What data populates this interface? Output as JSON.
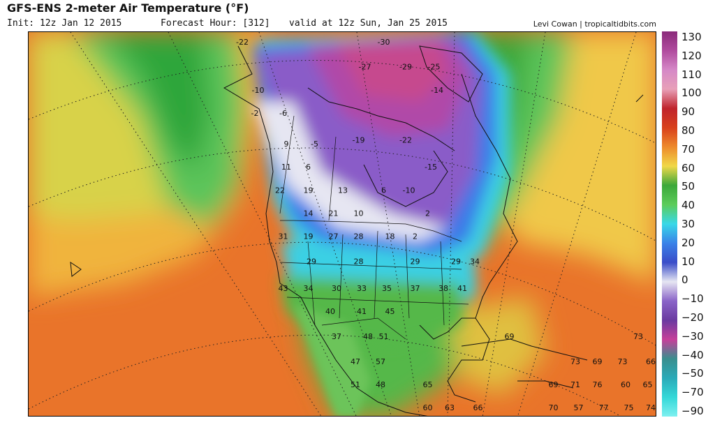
{
  "header": {
    "title": "GFS-ENS 2-meter Air Temperature (°F)",
    "init": "Init: 12z Jan 12 2015",
    "forecast_hour": "Forecast Hour: [312]",
    "valid": "valid at 12z Sun, Jan 25 2015",
    "credit": "Levi Cowan | tropicaltidbits.com"
  },
  "colorbar": {
    "ticks": [
      "130",
      "120",
      "110",
      "100",
      "90",
      "80",
      "70",
      "60",
      "50",
      "40",
      "30",
      "20",
      "10",
      "0",
      "−10",
      "−20",
      "−30",
      "−40",
      "−50",
      "−70",
      "−90"
    ],
    "colors": [
      "#8a2a7a",
      "#b04b9e",
      "#d588c7",
      "#e8a0b8",
      "#c0242c",
      "#d8401c",
      "#ee8a2c",
      "#f0d848",
      "#3ca83a",
      "#5ccc5a",
      "#38d8e8",
      "#3a82e8",
      "#3a4cc8",
      "#e6e6f2",
      "#8a64c8",
      "#6a3aa0",
      "#c6409a",
      "#3a8e8e",
      "#2aaab8",
      "#34d8d8",
      "#7ef0f0"
    ]
  },
  "map": {
    "values": [
      {
        "v": "-22",
        "x": 0.34,
        "y": 0.025
      },
      {
        "v": "-30",
        "x": 0.565,
        "y": 0.025
      },
      {
        "v": "-27",
        "x": 0.535,
        "y": 0.09
      },
      {
        "v": "-29",
        "x": 0.6,
        "y": 0.09
      },
      {
        "v": "-25",
        "x": 0.645,
        "y": 0.09
      },
      {
        "v": "-14",
        "x": 0.65,
        "y": 0.15
      },
      {
        "v": "-10",
        "x": 0.365,
        "y": 0.15
      },
      {
        "v": "-2",
        "x": 0.36,
        "y": 0.21
      },
      {
        "v": "-6",
        "x": 0.405,
        "y": 0.21
      },
      {
        "v": "-19",
        "x": 0.525,
        "y": 0.28
      },
      {
        "v": "-22",
        "x": 0.6,
        "y": 0.28
      },
      {
        "v": "9",
        "x": 0.41,
        "y": 0.29
      },
      {
        "v": "-5",
        "x": 0.455,
        "y": 0.29
      },
      {
        "v": "11",
        "x": 0.41,
        "y": 0.35
      },
      {
        "v": "6",
        "x": 0.445,
        "y": 0.35
      },
      {
        "v": "-15",
        "x": 0.64,
        "y": 0.35
      },
      {
        "v": "22",
        "x": 0.4,
        "y": 0.41
      },
      {
        "v": "19",
        "x": 0.445,
        "y": 0.41
      },
      {
        "v": "13",
        "x": 0.5,
        "y": 0.41
      },
      {
        "v": "6",
        "x": 0.565,
        "y": 0.41
      },
      {
        "v": "-10",
        "x": 0.605,
        "y": 0.41
      },
      {
        "v": "14",
        "x": 0.445,
        "y": 0.47
      },
      {
        "v": "21",
        "x": 0.485,
        "y": 0.47
      },
      {
        "v": "10",
        "x": 0.525,
        "y": 0.47
      },
      {
        "v": "2",
        "x": 0.635,
        "y": 0.47
      },
      {
        "v": "31",
        "x": 0.405,
        "y": 0.53
      },
      {
        "v": "19",
        "x": 0.445,
        "y": 0.53
      },
      {
        "v": "27",
        "x": 0.485,
        "y": 0.53
      },
      {
        "v": "28",
        "x": 0.525,
        "y": 0.53
      },
      {
        "v": "18",
        "x": 0.575,
        "y": 0.53
      },
      {
        "v": "2",
        "x": 0.615,
        "y": 0.53
      },
      {
        "v": "29",
        "x": 0.45,
        "y": 0.595
      },
      {
        "v": "28",
        "x": 0.525,
        "y": 0.595
      },
      {
        "v": "29",
        "x": 0.615,
        "y": 0.595
      },
      {
        "v": "29",
        "x": 0.68,
        "y": 0.595
      },
      {
        "v": "34",
        "x": 0.71,
        "y": 0.595
      },
      {
        "v": "43",
        "x": 0.405,
        "y": 0.665
      },
      {
        "v": "34",
        "x": 0.445,
        "y": 0.665
      },
      {
        "v": "30",
        "x": 0.49,
        "y": 0.665
      },
      {
        "v": "33",
        "x": 0.53,
        "y": 0.665
      },
      {
        "v": "35",
        "x": 0.57,
        "y": 0.665
      },
      {
        "v": "37",
        "x": 0.615,
        "y": 0.665
      },
      {
        "v": "38",
        "x": 0.66,
        "y": 0.665
      },
      {
        "v": "41",
        "x": 0.69,
        "y": 0.665
      },
      {
        "v": "40",
        "x": 0.48,
        "y": 0.725
      },
      {
        "v": "41",
        "x": 0.53,
        "y": 0.725
      },
      {
        "v": "45",
        "x": 0.575,
        "y": 0.725
      },
      {
        "v": "37",
        "x": 0.49,
        "y": 0.79
      },
      {
        "v": "48",
        "x": 0.54,
        "y": 0.79
      },
      {
        "v": "51",
        "x": 0.565,
        "y": 0.79
      },
      {
        "v": "69",
        "x": 0.765,
        "y": 0.79
      },
      {
        "v": "73",
        "x": 0.97,
        "y": 0.79
      },
      {
        "v": "47",
        "x": 0.52,
        "y": 0.855
      },
      {
        "v": "57",
        "x": 0.56,
        "y": 0.855
      },
      {
        "v": "73",
        "x": 0.87,
        "y": 0.855
      },
      {
        "v": "69",
        "x": 0.905,
        "y": 0.855
      },
      {
        "v": "73",
        "x": 0.945,
        "y": 0.855
      },
      {
        "v": "66",
        "x": 0.99,
        "y": 0.855
      },
      {
        "v": "51",
        "x": 0.52,
        "y": 0.915
      },
      {
        "v": "48",
        "x": 0.56,
        "y": 0.915
      },
      {
        "v": "65",
        "x": 0.635,
        "y": 0.915
      },
      {
        "v": "69",
        "x": 0.835,
        "y": 0.915
      },
      {
        "v": "71",
        "x": 0.87,
        "y": 0.915
      },
      {
        "v": "76",
        "x": 0.905,
        "y": 0.915
      },
      {
        "v": "60",
        "x": 0.95,
        "y": 0.915
      },
      {
        "v": "65",
        "x": 0.985,
        "y": 0.915
      },
      {
        "v": "60",
        "x": 0.635,
        "y": 0.975
      },
      {
        "v": "63",
        "x": 0.67,
        "y": 0.975
      },
      {
        "v": "66",
        "x": 0.715,
        "y": 0.975
      },
      {
        "v": "70",
        "x": 0.835,
        "y": 0.975
      },
      {
        "v": "57",
        "x": 0.875,
        "y": 0.975
      },
      {
        "v": "77",
        "x": 0.915,
        "y": 0.975
      },
      {
        "v": "75",
        "x": 0.955,
        "y": 0.975
      },
      {
        "v": "74",
        "x": 0.99,
        "y": 0.975
      }
    ]
  }
}
